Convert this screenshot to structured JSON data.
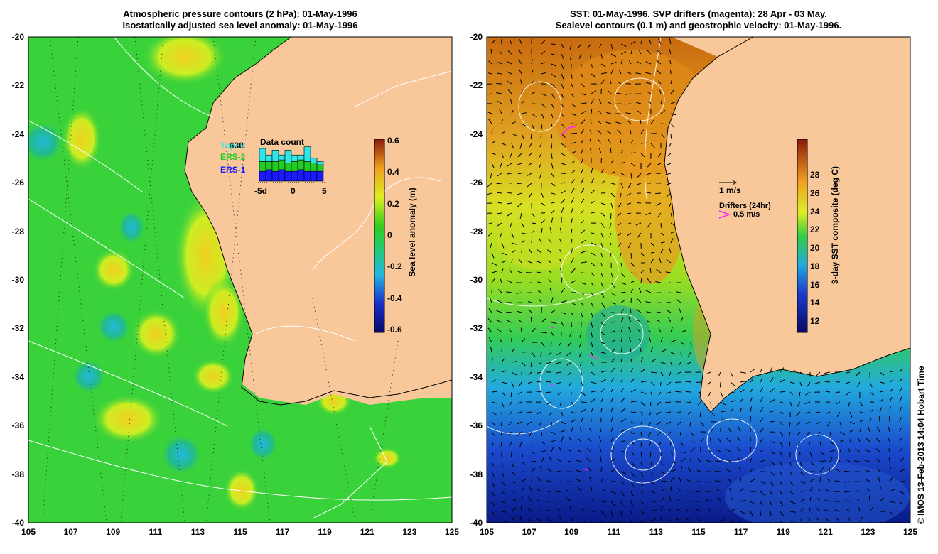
{
  "left": {
    "title_line1": "Atmospheric pressure contours (2 hPa): 01-May-1996",
    "title_line2": "Isostatically adjusted sea level anomaly: 01-May-1996",
    "colorbar_label": "Sea level anomaly (m)",
    "colorbar_ticks": [
      "0.6",
      "0.4",
      "0.2",
      "0",
      "-0.2",
      "-0.4",
      "-0.6"
    ],
    "inset": {
      "title": "Data count",
      "count": "630",
      "satellites": [
        "Topex",
        "ERS-2",
        "ERS-1"
      ],
      "satellite_colors": [
        "#2ee6e6",
        "#22cc22",
        "#1a1aff"
      ],
      "axis_ticks": [
        "-5d",
        "0",
        "5"
      ],
      "bars": [
        {
          "erS1": 6,
          "erS2": 6,
          "topex": 8
        },
        {
          "erS1": 7,
          "erS2": 5,
          "topex": 4
        },
        {
          "erS1": 6,
          "erS2": 6,
          "topex": 7
        },
        {
          "erS1": 7,
          "erS2": 6,
          "topex": 3
        },
        {
          "erS1": 6,
          "erS2": 5,
          "topex": 8
        },
        {
          "erS1": 6,
          "erS2": 6,
          "topex": 4
        },
        {
          "erS1": 7,
          "erS2": 6,
          "topex": 3
        },
        {
          "erS1": 6,
          "erS2": 6,
          "topex": 9
        },
        {
          "erS1": 6,
          "erS2": 5,
          "topex": 3
        },
        {
          "erS1": 6,
          "erS2": 4,
          "topex": 2
        }
      ]
    }
  },
  "right": {
    "title_line1": "SST: 01-May-1996. SVP drifters (magenta): 28 Apr - 03 May.",
    "title_line2": "Sealevel contours (0.1 m) and geostrophic velocity: 01-May-1996.",
    "colorbar_label": "3-day SST composite (deg C)",
    "colorbar_ticks": [
      "28",
      "26",
      "24",
      "22",
      "20",
      "18",
      "16",
      "14",
      "12"
    ],
    "velocity_scale_label": "1 m/s",
    "drifters_label": "Drifters (24hr)",
    "drifters_scale_label": "0.5 m/s"
  },
  "axes": {
    "lat_ticks": [
      "-20",
      "-22",
      "-24",
      "-26",
      "-28",
      "-30",
      "-32",
      "-34",
      "-36",
      "-38",
      "-40"
    ],
    "lon_ticks": [
      "105",
      "107",
      "109",
      "111",
      "113",
      "115",
      "117",
      "119",
      "121",
      "123",
      "125"
    ]
  },
  "credit": "© IMOS 13-Feb-2013 14:04 Hobart Time",
  "colors": {
    "land": "#f9c89a",
    "ocean_left": "#3ad23a",
    "sla_positive": "#ddee22",
    "sla_negative": "#22aa99",
    "sst_warm": "#c85a10",
    "sst_mid": "#dddd22",
    "sst_cool": "#1a4acc"
  }
}
